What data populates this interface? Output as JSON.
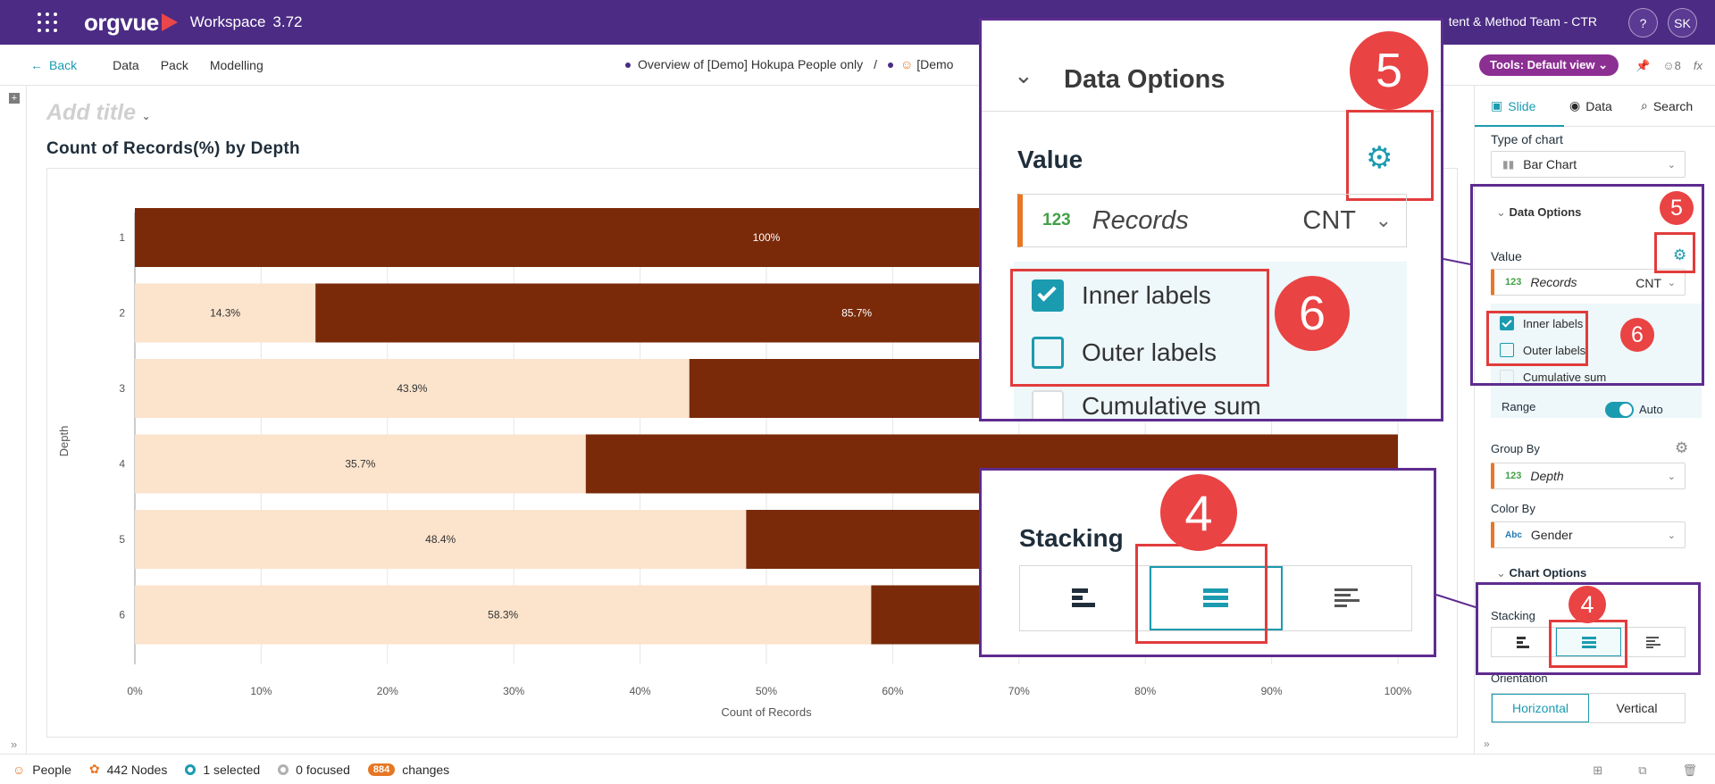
{
  "topbar": {
    "app_name": "orgvue",
    "workspace_label": "Workspace",
    "version": "3.72",
    "team": "tent & Method Team - CTR",
    "help": "?",
    "avatar": "SK"
  },
  "subbar": {
    "back": "Back",
    "nav": [
      "Data",
      "Pack",
      "Modelling"
    ],
    "breadcrumb_1": "Overview of [Demo] Hokupa People only",
    "breadcrumb_sep": "/",
    "breadcrumb_2": "[Demo",
    "tools": "Tools: Default view",
    "count": "8",
    "fx": "fx"
  },
  "page": {
    "add_title_placeholder": "Add title"
  },
  "chart_data": {
    "type": "bar",
    "title": "Count of Records(%) by Depth",
    "xlabel": "Count of Records",
    "ylabel": "Depth",
    "stacking": "stacked-100",
    "categories": [
      "1",
      "2",
      "3",
      "4",
      "5",
      "6"
    ],
    "series": [
      {
        "values": [
          0,
          14.3,
          43.9,
          35.7,
          48.4,
          58.3
        ],
        "color": "#fbe3cc"
      },
      {
        "values": [
          100,
          85.7,
          56.1,
          64.3,
          51.6,
          41.7
        ],
        "color": "#7a2a09"
      }
    ],
    "data_labels": [
      "",
      "14.3%",
      "43.9%",
      "35.7%",
      "48.4%",
      "58.3%"
    ],
    "data_labels_2": [
      "100%",
      "85.7%",
      "",
      "",
      "",
      ""
    ],
    "xticks": [
      "0%",
      "10%",
      "20%",
      "30%",
      "40%",
      "50%",
      "60%",
      "70%",
      "80%",
      "90%",
      "100%"
    ],
    "xlim": [
      0,
      100
    ],
    "grid": true
  },
  "sidebar": {
    "tabs": [
      "Slide",
      "Data",
      "Search"
    ],
    "type_of_chart_label": "Type of chart",
    "type_of_chart_value": "Bar Chart",
    "data_options_label": "Data Options",
    "value_label": "Value",
    "value_field_badge": "123",
    "value_field": "Records",
    "value_agg": "CNT",
    "inner_labels": "Inner labels",
    "outer_labels": "Outer labels",
    "cumulative_sum": "Cumulative sum",
    "range_label": "Range",
    "range_value": "Auto",
    "group_by_label": "Group By",
    "group_by_badge": "123",
    "group_by_value": "Depth",
    "color_by_label": "Color By",
    "color_by_badge": "Abc",
    "color_by_value": "Gender",
    "chart_options_label": "Chart Options",
    "stacking_label": "Stacking",
    "orientation_label": "Orientation",
    "orientation_options": [
      "Horizontal",
      "Vertical"
    ]
  },
  "annotations": {
    "step_5": "5",
    "step_6": "6",
    "step_4": "4"
  },
  "statusbar": {
    "people": "People",
    "nodes": "442 Nodes",
    "selected": "1 selected",
    "focused": "0 focused",
    "changes_count": "884",
    "changes": "changes"
  },
  "colors": {
    "brand": "#4b2b84",
    "accent": "#1b9bb0",
    "bar_dark": "#7a2a09",
    "bar_light": "#fbe3cc",
    "highlight": "#e23c3c"
  }
}
